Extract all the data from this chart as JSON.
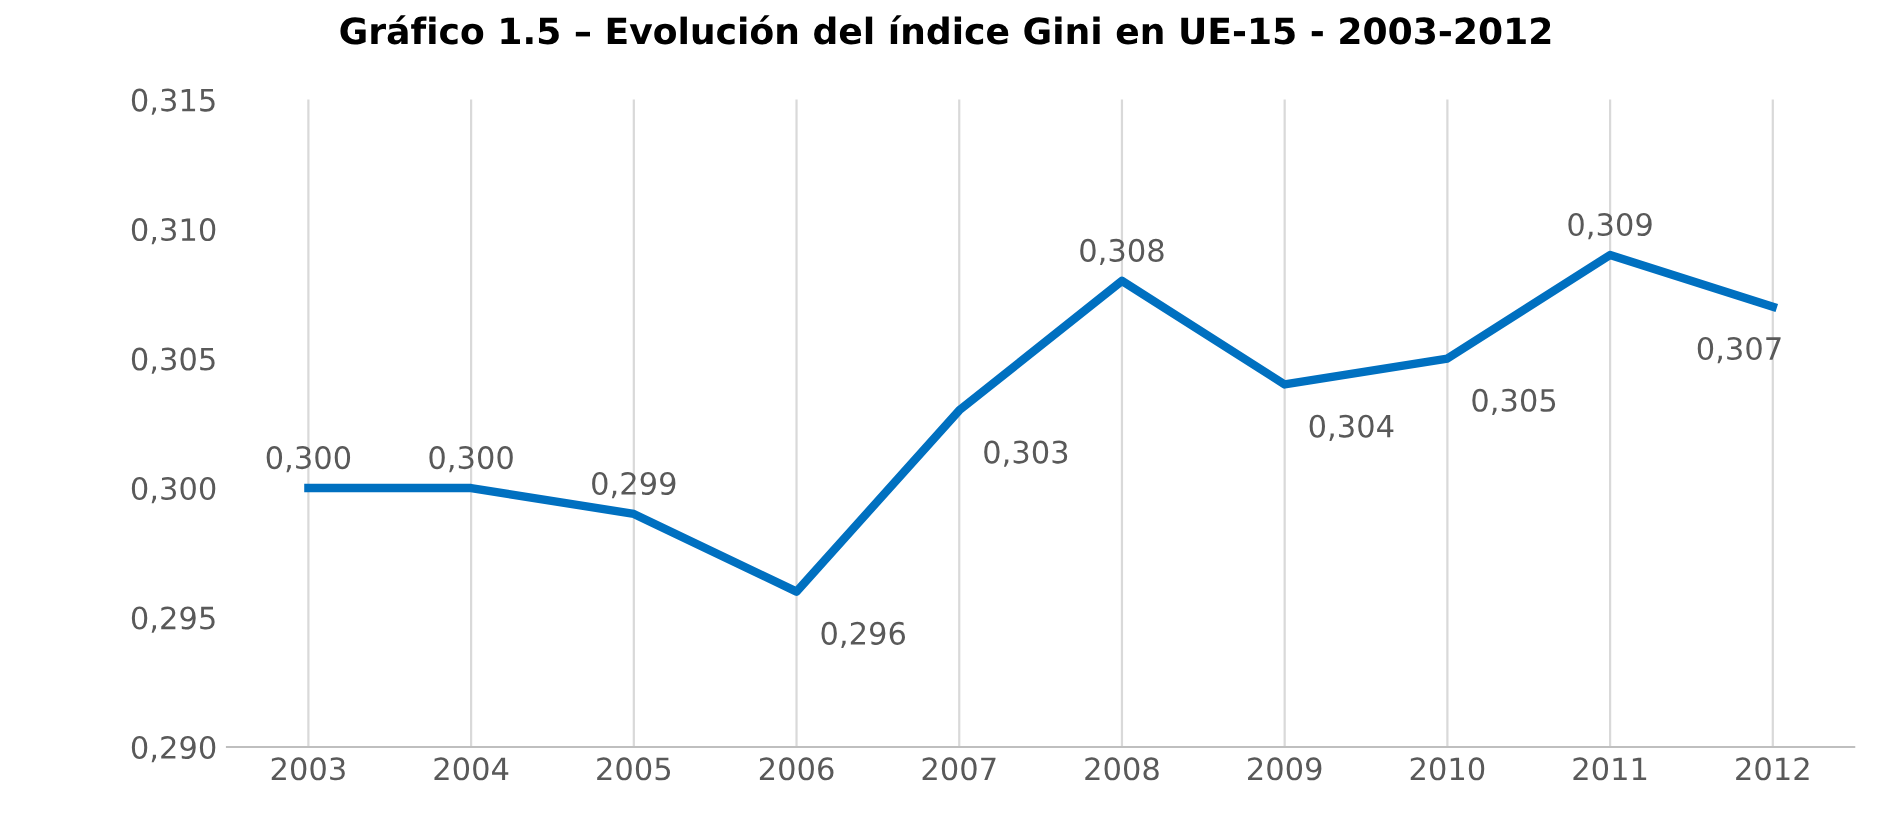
{
  "chart_data": {
    "type": "line",
    "title": "Gráfico 1.5 – Evolución del índice Gini en UE-15 - 2003-2012",
    "categories": [
      "2003",
      "2004",
      "2005",
      "2006",
      "2007",
      "2008",
      "2009",
      "2010",
      "2011",
      "2012"
    ],
    "series": [
      {
        "color": "#0070c0",
        "values": [
          0.3,
          0.3,
          0.299,
          0.296,
          0.303,
          0.308,
          0.304,
          0.305,
          0.309,
          0.307
        ],
        "value_labels": [
          "0,300",
          "0,300",
          "0,299",
          "0,296",
          "0,303",
          "0,308",
          "0,304",
          "0,305",
          "0,309",
          "0,307"
        ]
      }
    ],
    "ylim": [
      0.29,
      0.315
    ],
    "yticks": [
      {
        "value": 0.29,
        "label": "0,290"
      },
      {
        "value": 0.295,
        "label": "0,295"
      },
      {
        "value": 0.3,
        "label": "0,300"
      },
      {
        "value": 0.305,
        "label": "0,305"
      },
      {
        "value": 0.31,
        "label": "0,310"
      },
      {
        "value": 0.315,
        "label": "0,315"
      }
    ],
    "grid": "x",
    "marker": "none",
    "line_style": "solid",
    "legend": false
  }
}
